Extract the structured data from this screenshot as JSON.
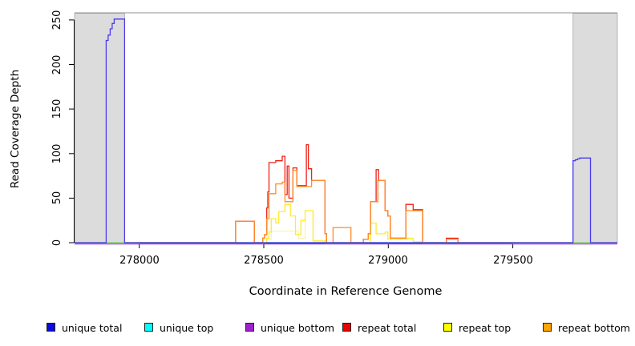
{
  "figure": {
    "background": "#ffffff"
  },
  "chart_data": {
    "type": "line",
    "subtype": "step-coverage",
    "title": "",
    "xlabel": "Coordinate in Reference Genome",
    "ylabel": "Read Coverage Depth",
    "xlim": [
      277740,
      279920
    ],
    "ylim": [
      0,
      258
    ],
    "x_ticks": [
      278000,
      278500,
      279000,
      279500
    ],
    "y_ticks": [
      0,
      50,
      100,
      150,
      200,
      250
    ],
    "grid": false,
    "legend_position": "bottom",
    "shaded_regions": [
      {
        "from": 277740,
        "to": 277941,
        "color": "#dcdcdc",
        "border": "#a8a8a8"
      },
      {
        "from": 279742,
        "to": 279920,
        "color": "#dcdcdc",
        "border": "#a8a8a8"
      }
    ],
    "series": [
      {
        "name": "unique total",
        "color": "#4a3aee",
        "steps": [
          [
            277740,
            0
          ],
          [
            277867,
            227
          ],
          [
            277875,
            233
          ],
          [
            277883,
            240
          ],
          [
            277891,
            246
          ],
          [
            277899,
            251
          ],
          [
            277941,
            0
          ],
          [
            279742,
            92
          ],
          [
            279751,
            93
          ],
          [
            279760,
            94
          ],
          [
            279769,
            95
          ],
          [
            279812,
            0
          ],
          [
            279920,
            0
          ]
        ]
      },
      {
        "name": "unique top",
        "color": "#00e0e0",
        "steps": [
          [
            277740,
            0
          ],
          [
            279920,
            0
          ]
        ]
      },
      {
        "name": "unique bottom",
        "color": "#9850d8",
        "steps": [
          [
            277740,
            0
          ],
          [
            279920,
            0
          ]
        ]
      },
      {
        "name": "repeat total",
        "color": "#ef2118",
        "steps": [
          [
            277740,
            0
          ],
          [
            278387,
            24
          ],
          [
            278462,
            0
          ],
          [
            278496,
            5
          ],
          [
            278503,
            9
          ],
          [
            278512,
            39
          ],
          [
            278516,
            57
          ],
          [
            278521,
            90
          ],
          [
            278548,
            92
          ],
          [
            278574,
            97
          ],
          [
            278585,
            54
          ],
          [
            278594,
            86
          ],
          [
            278601,
            50
          ],
          [
            278617,
            84
          ],
          [
            278633,
            64
          ],
          [
            278671,
            110
          ],
          [
            278679,
            83
          ],
          [
            278692,
            70
          ],
          [
            278746,
            10
          ],
          [
            278752,
            0
          ],
          [
            278900,
            4
          ],
          [
            278920,
            10
          ],
          [
            278929,
            46
          ],
          [
            278951,
            82
          ],
          [
            278961,
            70
          ],
          [
            278987,
            36
          ],
          [
            278998,
            30
          ],
          [
            279008,
            5
          ],
          [
            279071,
            43
          ],
          [
            279100,
            37
          ],
          [
            279138,
            0
          ],
          [
            279233,
            5
          ],
          [
            279280,
            0
          ],
          [
            279920,
            0
          ]
        ]
      },
      {
        "name": "repeat top",
        "color": "#ffec2e",
        "steps": [
          [
            277740,
            0
          ],
          [
            278512,
            5
          ],
          [
            278521,
            12
          ],
          [
            278530,
            27
          ],
          [
            278548,
            22
          ],
          [
            278560,
            35
          ],
          [
            278585,
            43
          ],
          [
            278607,
            30
          ],
          [
            278627,
            9
          ],
          [
            278649,
            25
          ],
          [
            278666,
            36
          ],
          [
            278698,
            2
          ],
          [
            278746,
            0
          ],
          [
            278929,
            22
          ],
          [
            278951,
            10
          ],
          [
            278987,
            12
          ],
          [
            278998,
            4
          ],
          [
            279071,
            5
          ],
          [
            279100,
            1
          ],
          [
            279138,
            0
          ],
          [
            279920,
            0
          ]
        ]
      },
      {
        "name": "repeat bottom",
        "color": "#ff8c26",
        "steps": [
          [
            277740,
            0
          ],
          [
            278387,
            24
          ],
          [
            278462,
            0
          ],
          [
            278496,
            5
          ],
          [
            278503,
            9
          ],
          [
            278512,
            27
          ],
          [
            278521,
            55
          ],
          [
            278548,
            66
          ],
          [
            278574,
            68
          ],
          [
            278585,
            46
          ],
          [
            278617,
            81
          ],
          [
            278633,
            63
          ],
          [
            278692,
            70
          ],
          [
            278746,
            10
          ],
          [
            278752,
            0
          ],
          [
            278778,
            17
          ],
          [
            278850,
            0
          ],
          [
            278900,
            4
          ],
          [
            278920,
            10
          ],
          [
            278929,
            46
          ],
          [
            278958,
            70
          ],
          [
            278987,
            36
          ],
          [
            278998,
            30
          ],
          [
            279008,
            5
          ],
          [
            279071,
            36
          ],
          [
            279138,
            0
          ],
          [
            279233,
            4
          ],
          [
            279280,
            0
          ],
          [
            279920,
            0
          ]
        ]
      }
    ],
    "artifacts": {
      "top_rule_color": "#909090",
      "pale_yellow_line": {
        "color": "#fdf2b3",
        "steps_segments": [
          [
            [
              278496,
              4
            ],
            [
              278530,
              13
            ],
            [
              278607,
              13
            ],
            [
              278639,
              5
            ],
            [
              278666,
              36
            ],
            [
              278698,
              2
            ],
            [
              278746,
              0
            ]
          ],
          [
            [
              279073,
              4
            ],
            [
              279100,
              0
            ]
          ]
        ]
      },
      "baseline_overlap_green": {
        "color": "#8ad88a",
        "ranges": [
          [
            277870,
            277940
          ],
          [
            279744,
            279810
          ]
        ]
      }
    }
  },
  "legend": {
    "items": [
      {
        "label": "unique total",
        "color": "#0c0cdc"
      },
      {
        "label": "unique top",
        "color": "#00ffff"
      },
      {
        "label": "unique bottom",
        "color": "#a020d0"
      },
      {
        "label": "repeat total",
        "color": "#ee0000"
      },
      {
        "label": "repeat top",
        "color": "#ffff00"
      },
      {
        "label": "repeat bottom",
        "color": "#ffa405"
      }
    ]
  }
}
